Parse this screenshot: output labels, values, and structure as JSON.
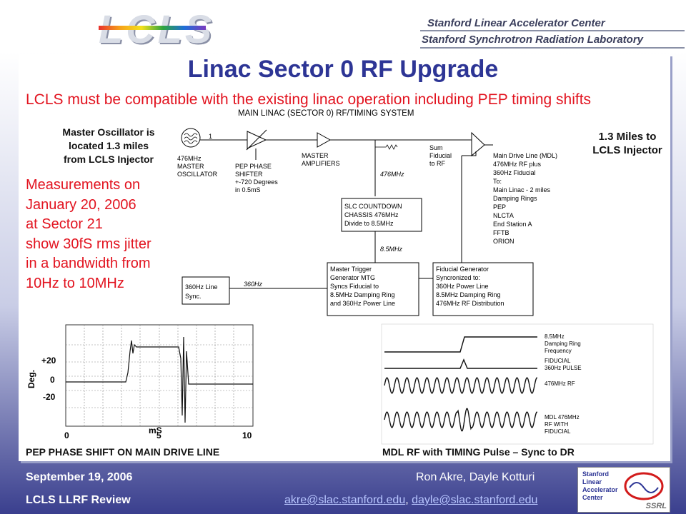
{
  "header": {
    "logo_text": "LCLS",
    "org_line1": "Stanford Linear Accelerator Center",
    "org_line2": "Stanford Synchrotron Radiation Laboratory"
  },
  "slide": {
    "title": "Linac Sector 0 RF Upgrade",
    "subtitle": "LCLS must be compatible with the existing linac operation including PEP timing shifts",
    "measure_lines": [
      "Measurements on",
      "January 20, 2006",
      "at Sector 21",
      "show 30fS rms jitter",
      "in a bandwidth from",
      "10Hz to 10MHz"
    ],
    "mo_note_lines": [
      "Master Oscillator is",
      "located 1.3 miles",
      "from LCLS Injector"
    ],
    "miles_note_lines": [
      "1.3 Miles to",
      "LCLS Injector"
    ]
  },
  "diagram": {
    "title": "MAIN LINAC (SECTOR 0) RF/TIMING SYSTEM",
    "oscillator": [
      "476MHz",
      "MASTER",
      "OSCILLATOR"
    ],
    "oscillator_number": "1",
    "pep_shifter": [
      "PEP PHASE",
      "SHIFTER",
      "+-720 Degrees",
      "in 0.5mS"
    ],
    "amplifiers": [
      "MASTER",
      "AMPLIFIERS"
    ],
    "sum": [
      "Sum",
      "Fiducial",
      "to RF"
    ],
    "mdl": [
      "Main Drive Line (MDL)",
      "476MHz RF plus",
      "360Hz Fiducial",
      "To:",
      "Main Linac - 2 miles",
      "Damping Rings",
      "PEP",
      "NLCTA",
      "End Station A",
      "FFTB",
      "ORION"
    ],
    "rf_label1": "476MHz",
    "slc": [
      "SLC COUNTDOWN",
      "CHASSIS 476MHz",
      "Divide to 8.5MHz"
    ],
    "rf_label2": "8.5MHz",
    "line_sync": [
      "360Hz Line",
      "Sync."
    ],
    "hz_label": "360Hz",
    "mtg": [
      "Master Trigger",
      "Generator MTG",
      "Syncs Fiducial to",
      "8.5MHz Damping Ring",
      "and 360Hz Power Line"
    ],
    "fiducial_gen": [
      "Fiducial Generator",
      "Syncronized to:",
      "360Hz Power Line",
      "8.5MHz Damping Ring",
      "476MHz RF Distribution"
    ]
  },
  "plot_left": {
    "ylabel": "Deg.",
    "xlabel": "mS",
    "yticks": [
      "+20",
      "0",
      "-20"
    ],
    "xticks": [
      "0",
      "5",
      "10"
    ],
    "caption": "PEP PHASE SHIFT ON MAIN DRIVE LINE"
  },
  "plot_right": {
    "labels": [
      [
        "8.5MHz",
        "Damping Ring",
        "Frequency"
      ],
      [
        "FIDUCIAL",
        "360Hz PULSE"
      ],
      [
        "476MHz RF"
      ],
      [
        "MDL 476MHz",
        "RF WITH",
        "FIDUCIAL"
      ]
    ],
    "caption": "MDL RF with TIMING Pulse – Sync to DR"
  },
  "footer": {
    "date": "September 19, 2006",
    "review": "LCLS LLRF Review",
    "authors": "Ron Akre, Dayle Kotturi",
    "email1": "akre@slac.stanford.edu",
    "email_sep": ", ",
    "email2": "dayle@slac.stanford.edu",
    "logo_lines": [
      "Stanford",
      "Linear",
      "Accelerator",
      "Center"
    ],
    "logo_tag": "SSRL"
  },
  "colors": {
    "title": "#2d3595",
    "accent_red": "#e2131f",
    "footer_bg": "#3a3f8e"
  }
}
